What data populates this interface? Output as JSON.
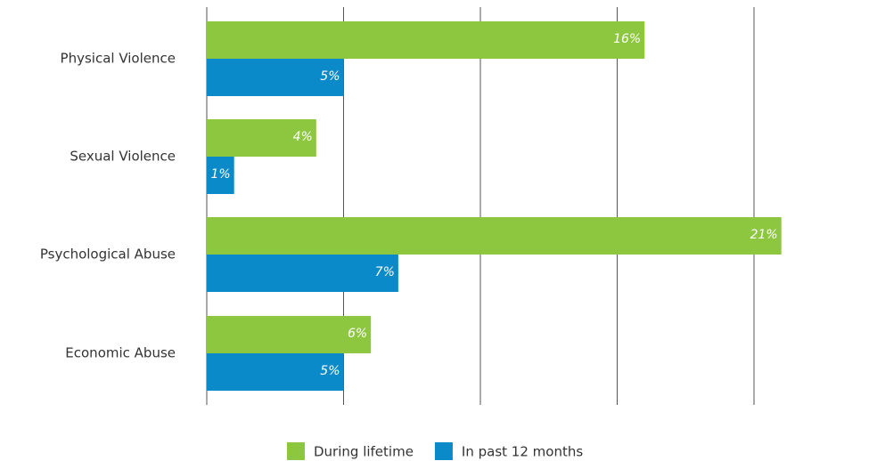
{
  "chart_data": {
    "type": "barh",
    "categories": [
      "Physical Violence",
      "Sexual Violence",
      "Psychological Abuse",
      "Economic Abuse"
    ],
    "series": [
      {
        "name": "During lifetime",
        "color": "#8dc63f",
        "values": [
          16,
          4,
          21,
          6
        ],
        "value_labels": [
          "16%",
          "4%",
          "21%",
          "6%"
        ]
      },
      {
        "name": "In past 12 months",
        "color": "#0a8ac8",
        "values": [
          5,
          1,
          7,
          5
        ],
        "value_labels": [
          "5%",
          "1%",
          "7%",
          "5%"
        ]
      }
    ],
    "xlim": [
      0,
      20
    ],
    "xticks": [
      0,
      5,
      10,
      15,
      20
    ],
    "grid": true,
    "legend": "bottom"
  }
}
